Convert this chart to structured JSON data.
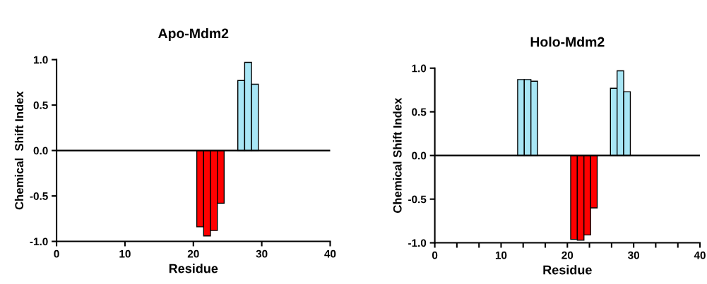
{
  "chart_data": [
    {
      "type": "bar",
      "title": "Apo-Mdm2",
      "xlabel": "Residue",
      "ylabel": "Chemical  Shift Index",
      "x": [
        21,
        22,
        23,
        24,
        27,
        28,
        29
      ],
      "values": [
        -0.84,
        -0.94,
        -0.88,
        -0.58,
        0.77,
        0.97,
        0.73
      ],
      "colors": [
        "#ff0000",
        "#ff0000",
        "#ff0000",
        "#ff0000",
        "#a8e6f5",
        "#a8e6f5",
        "#a8e6f5"
      ],
      "xlim": [
        0,
        40
      ],
      "xticks": [
        0,
        10,
        20,
        30,
        40
      ],
      "ylim": [
        -1.0,
        1.0
      ],
      "yticks": [
        {
          "value": -1.0,
          "label": "-1.0"
        },
        {
          "value": -0.5,
          "label": "-0.5"
        },
        {
          "value": 0.0,
          "label": "0.0"
        },
        {
          "value": 0.5,
          "label": "0.5"
        },
        {
          "value": 1.0,
          "label": "1.0"
        }
      ],
      "ref_lines": [
        {
          "axis": "y",
          "value": 0,
          "color": "#000000"
        }
      ],
      "grid": false,
      "legend": false
    },
    {
      "type": "bar",
      "title": "Holo-Mdm2",
      "xlabel": "Residue",
      "ylabel": "Chemical Shift Index",
      "x": [
        13,
        14,
        15,
        21,
        22,
        23,
        24,
        27,
        28,
        29
      ],
      "values": [
        0.87,
        0.87,
        0.85,
        -0.96,
        -0.97,
        -0.91,
        -0.6,
        0.77,
        0.97,
        0.73
      ],
      "colors": [
        "#a8e6f5",
        "#a8e6f5",
        "#a8e6f5",
        "#ff0000",
        "#ff0000",
        "#ff0000",
        "#ff0000",
        "#a8e6f5",
        "#a8e6f5",
        "#a8e6f5"
      ],
      "xlim": [
        0,
        40
      ],
      "xticks": [
        0,
        {
          "value": 3.33,
          "label": null
        },
        {
          "value": 6.67,
          "label": null
        },
        10,
        {
          "value": 13.33,
          "label": null
        },
        {
          "value": 16.67,
          "label": null
        },
        20,
        {
          "value": 23.33,
          "label": null
        },
        {
          "value": 26.67,
          "label": null
        },
        30,
        {
          "value": 33.33,
          "label": null
        },
        {
          "value": 36.67,
          "label": null
        },
        40
      ],
      "ylim": [
        -1.0,
        1.0
      ],
      "yticks": [
        {
          "value": -1.0,
          "label": "-1.0"
        },
        {
          "value": -0.5,
          "label": "-0.5"
        },
        {
          "value": 0.0,
          "label": "0.0"
        },
        {
          "value": 0.5,
          "label": "0.5"
        },
        {
          "value": 1.0,
          "label": "1.0"
        }
      ],
      "ref_lines": [
        {
          "axis": "y",
          "value": 0,
          "color": "#000000"
        }
      ],
      "grid": false,
      "legend": false
    }
  ]
}
